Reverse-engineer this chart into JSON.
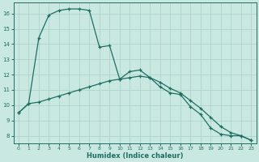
{
  "xlabel": "Humidex (Indice chaleur)",
  "xlim": [
    -0.5,
    23.5
  ],
  "ylim": [
    7.5,
    16.7
  ],
  "yticks": [
    8,
    9,
    10,
    11,
    12,
    13,
    14,
    15,
    16
  ],
  "xticks": [
    0,
    1,
    2,
    3,
    4,
    5,
    6,
    7,
    8,
    9,
    10,
    11,
    12,
    13,
    14,
    15,
    16,
    17,
    18,
    19,
    20,
    21,
    22,
    23
  ],
  "background_color": "#c9e8e2",
  "grid_color": "#aed4cc",
  "line_color": "#1e6e62",
  "line1_x": [
    0,
    1,
    2,
    3,
    4,
    5,
    6,
    7,
    8,
    9,
    10,
    11,
    12,
    13,
    14,
    15,
    16,
    17,
    18,
    19,
    20,
    21,
    22,
    23
  ],
  "line1_y": [
    9.5,
    10.1,
    14.4,
    15.9,
    16.2,
    16.3,
    16.3,
    16.2,
    13.8,
    13.9,
    11.7,
    12.2,
    12.3,
    11.8,
    11.2,
    10.8,
    10.7,
    9.9,
    9.4,
    8.5,
    8.1,
    8.0,
    8.0,
    7.7
  ],
  "line2_x": [
    0,
    1,
    2,
    3,
    4,
    5,
    6,
    7,
    8,
    9,
    10,
    11,
    12,
    13,
    14,
    15,
    16,
    17,
    18,
    19,
    20,
    21,
    22,
    23
  ],
  "line2_y": [
    9.5,
    10.1,
    10.2,
    10.4,
    10.6,
    10.8,
    11.0,
    11.2,
    11.4,
    11.6,
    11.7,
    11.8,
    11.9,
    11.8,
    11.5,
    11.1,
    10.8,
    10.3,
    9.8,
    9.2,
    8.6,
    8.2,
    8.0,
    7.7
  ]
}
